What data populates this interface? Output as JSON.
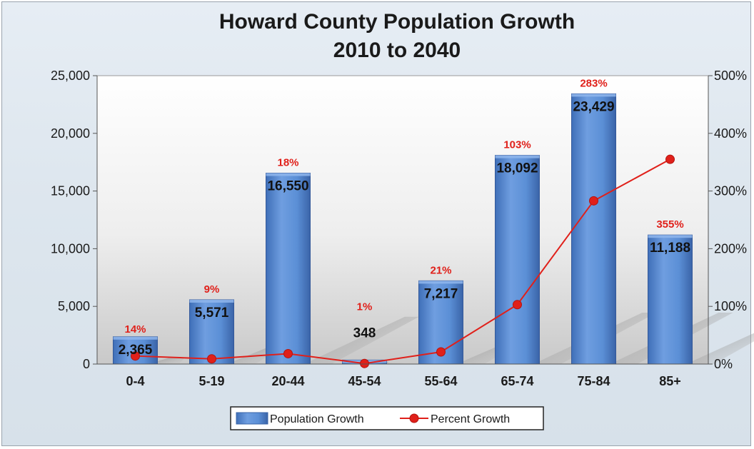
{
  "chart_data": {
    "type": "bar",
    "title_lines": [
      "Howard County Population Growth",
      "2010 to 2040"
    ],
    "categories": [
      "0-4",
      "5-19",
      "20-44",
      "45-54",
      "55-64",
      "65-74",
      "75-84",
      "85+"
    ],
    "series": [
      {
        "name": "Population Growth",
        "type": "bar",
        "axis": "left",
        "color": "#5b8fd6",
        "values": [
          2365,
          5571,
          16550,
          348,
          7217,
          18092,
          23429,
          11188
        ],
        "labels": [
          "2,365",
          "5,571",
          "16,550",
          "348",
          "7,217",
          "18,092",
          "23,429",
          "11,188"
        ]
      },
      {
        "name": "Percent Growth",
        "type": "line",
        "axis": "right",
        "color": "#e0201a",
        "values": [
          14,
          9,
          18,
          1,
          21,
          103,
          283,
          355
        ],
        "labels": [
          "14%",
          "9%",
          "18%",
          "1%",
          "21%",
          "103%",
          "283%",
          "355%"
        ]
      }
    ],
    "left_axis": {
      "min": 0,
      "max": 25000,
      "ticks": [
        0,
        5000,
        10000,
        15000,
        20000,
        25000
      ],
      "tick_labels": [
        "0",
        "5,000",
        "10,000",
        "15,000",
        "20,000",
        "25,000"
      ]
    },
    "right_axis": {
      "min": 0,
      "max": 500,
      "ticks": [
        0,
        100,
        200,
        300,
        400,
        500
      ],
      "tick_labels": [
        "0%",
        "100%",
        "200%",
        "300%",
        "400%",
        "500%"
      ]
    },
    "legend_position": "bottom",
    "grid": false
  }
}
